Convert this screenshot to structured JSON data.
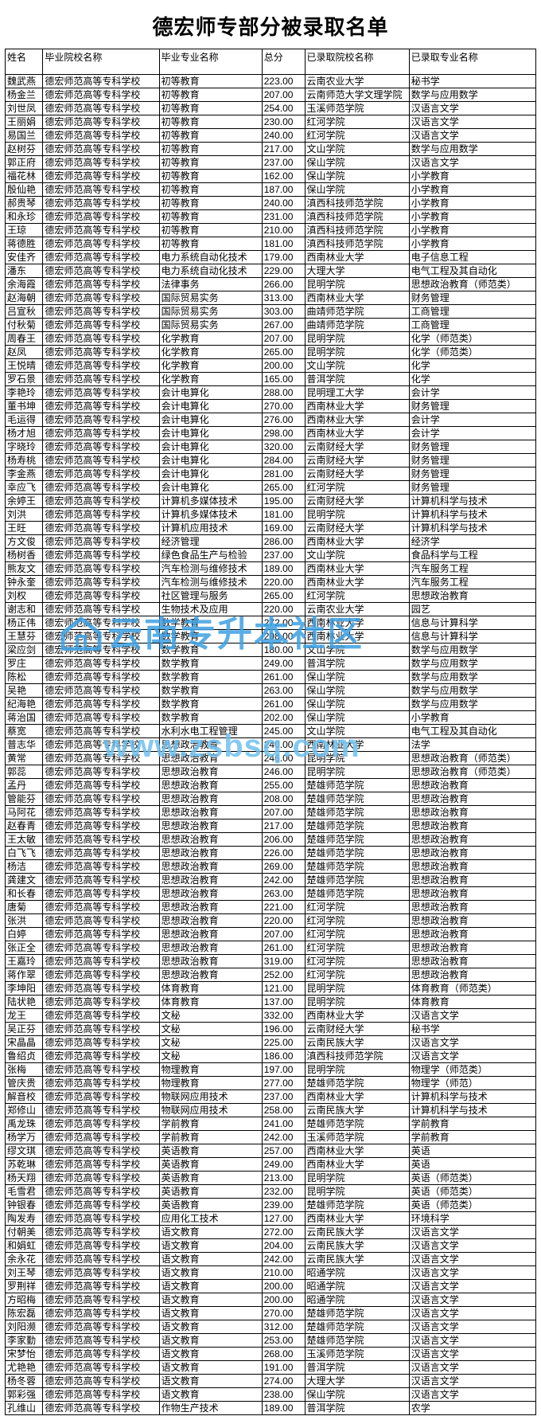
{
  "title": "德宏师专部分被录取名单",
  "columns": [
    "姓名",
    "毕业院校名称",
    "毕业专业名称",
    "总分",
    "已录取院校名称",
    "已录取专业名称"
  ],
  "watermark1": "云南专升本社区",
  "watermark2": "www.zsbsq.com",
  "rows": [
    [
      "魏武燕",
      "德宏师范高等专科学校",
      "初等教育",
      "223.00",
      "云南农业大学",
      "秘书学"
    ],
    [
      "杨金兰",
      "德宏师范高等专科学校",
      "初等教育",
      "207.00",
      "云南师范大学文理学院",
      "数学与应用数学"
    ],
    [
      "刘世凤",
      "德宏师范高等专科学校",
      "初等教育",
      "254.00",
      "玉溪师范学院",
      "汉语言文学"
    ],
    [
      "王丽娟",
      "德宏师范高等专科学校",
      "初等教育",
      "230.00",
      "红河学院",
      "汉语言文学"
    ],
    [
      "易国兰",
      "德宏师范高等专科学校",
      "初等教育",
      "240.00",
      "红河学院",
      "汉语言文学"
    ],
    [
      "赵树芬",
      "德宏师范高等专科学校",
      "初等教育",
      "217.00",
      "文山学院",
      "数学与应用数学"
    ],
    [
      "郭正府",
      "德宏师范高等专科学校",
      "初等教育",
      "237.00",
      "保山学院",
      "汉语言文学"
    ],
    [
      "福花林",
      "德宏师范高等专科学校",
      "初等教育",
      "162.00",
      "保山学院",
      "小学教育"
    ],
    [
      "殷仙艳",
      "德宏师范高等专科学校",
      "初等教育",
      "187.00",
      "保山学院",
      "小学教育"
    ],
    [
      "郝贵琴",
      "德宏师范高等专科学校",
      "初等教育",
      "240.00",
      "滇西科技师范学院",
      "小学教育"
    ],
    [
      "和永珍",
      "德宏师范高等专科学校",
      "初等教育",
      "231.00",
      "滇西科技师范学院",
      "小学教育"
    ],
    [
      "王琼",
      "德宏师范高等专科学校",
      "初等教育",
      "210.00",
      "滇西科技师范学院",
      "小学教育"
    ],
    [
      "蒋德胜",
      "德宏师范高等专科学校",
      "初等教育",
      "181.00",
      "滇西科技师范学院",
      "小学教育"
    ],
    [
      "安佳齐",
      "德宏师范高等专科学校",
      "电力系统自动化技术",
      "179.00",
      "西南林业大学",
      "电子信息工程"
    ],
    [
      "潘东",
      "德宏师范高等专科学校",
      "电力系统自动化技术",
      "229.00",
      "大理大学",
      "电气工程及其自动化"
    ],
    [
      "余海霞",
      "德宏师范高等专科学校",
      "法律事务",
      "266.00",
      "昆明学院",
      "思想政治教育（师范类）"
    ],
    [
      "赵海朝",
      "德宏师范高等专科学校",
      "国际贸易实务",
      "313.00",
      "西南林业大学",
      "财务管理"
    ],
    [
      "吕宣秋",
      "德宏师范高等专科学校",
      "国际贸易实务",
      "303.00",
      "曲靖师范学院",
      "工商管理"
    ],
    [
      "付秋菊",
      "德宏师范高等专科学校",
      "国际贸易实务",
      "267.00",
      "曲靖师范学院",
      "工商管理"
    ],
    [
      "周春王",
      "德宏师范高等专科学校",
      "化学教育",
      "207.00",
      "昆明学院",
      "化学（师范类）"
    ],
    [
      "赵凤",
      "德宏师范高等专科学校",
      "化学教育",
      "265.00",
      "昆明学院",
      "化学（师范类）"
    ],
    [
      "王悦晴",
      "德宏师范高等专科学校",
      "化学教育",
      "200.00",
      "文山学院",
      "化学"
    ],
    [
      "罗石景",
      "德宏师范高等专科学校",
      "化学教育",
      "165.00",
      "普洱学院",
      "化学"
    ],
    [
      "李艳玲",
      "德宏师范高等专科学校",
      "会计电算化",
      "288.00",
      "昆明理工大学",
      "会计学"
    ],
    [
      "董书坤",
      "德宏师范高等专科学校",
      "会计电算化",
      "270.00",
      "西南林业大学",
      "财务管理"
    ],
    [
      "毛运得",
      "德宏师范高等专科学校",
      "会计电算化",
      "276.00",
      "西南林业大学",
      "会计学"
    ],
    [
      "杨才旭",
      "德宏师范高等专科学校",
      "会计电算化",
      "298.00",
      "西南林业大学",
      "会计学"
    ],
    [
      "字晓玲",
      "德宏师范高等专科学校",
      "会计电算化",
      "320.00",
      "云南财经大学",
      "财务管理"
    ],
    [
      "杨寿桃",
      "德宏师范高等专科学校",
      "会计电算化",
      "284.00",
      "云南财经大学",
      "财务管理"
    ],
    [
      "李金燕",
      "德宏师范高等专科学校",
      "会计电算化",
      "281.00",
      "云南财经大学",
      "财务管理"
    ],
    [
      "幸应飞",
      "德宏师范高等专科学校",
      "会计电算化",
      "265.00",
      "红河学院",
      "财务管理"
    ],
    [
      "余婷王",
      "德宏师范高等专科学校",
      "计算机多媒体技术",
      "195.00",
      "云南财经大学",
      "计算机科学与技术"
    ],
    [
      "刘洪",
      "德宏师范高等专科学校",
      "计算机多媒体技术",
      "181.00",
      "昆明学院",
      "计算机科学与技术"
    ],
    [
      "王旺",
      "德宏师范高等专科学校",
      "计算机应用技术",
      "169.00",
      "云南财经大学",
      "计算机科学与技术"
    ],
    [
      "方文俊",
      "德宏师范高等专科学校",
      "经济管理",
      "286.00",
      "西南林业大学",
      "经济学"
    ],
    [
      "杨树香",
      "德宏师范高等专科学校",
      "绿色食品生产与检验",
      "237.00",
      "文山学院",
      "食品科学与工程"
    ],
    [
      "熊友文",
      "德宏师范高等专科学校",
      "汽车检测与维修技术",
      "189.00",
      "西南林业大学",
      "汽车服务工程"
    ],
    [
      "钟永奎",
      "德宏师范高等专科学校",
      "汽车检测与维修技术",
      "220.00",
      "西南林业大学",
      "汽车服务工程"
    ],
    [
      "刘权",
      "德宏师范高等专科学校",
      "社区管理与服务",
      "265.00",
      "红河学院",
      "思想政治教育"
    ],
    [
      "谢志和",
      "德宏师范高等专科学校",
      "生物技术及应用",
      "220.00",
      "云南农业大学",
      "园艺"
    ],
    [
      "杨正伟",
      "德宏师范高等专科学校",
      "数学教育",
      "272.00",
      "西南林业大学",
      "信息与计算科学"
    ],
    [
      "王慧芬",
      "德宏师范高等专科学校",
      "数学教育",
      "208.00",
      "西南林业大学",
      "信息与计算科学"
    ],
    [
      "梁应剑",
      "德宏师范高等专科学校",
      "数学教育",
      "180.00",
      "文山学院",
      "数学与应用数学"
    ],
    [
      "罗庄",
      "德宏师范高等专科学校",
      "数学教育",
      "249.00",
      "普洱学院",
      "数学与应用数学"
    ],
    [
      "陈松",
      "德宏师范高等专科学校",
      "数学教育",
      "261.00",
      "保山学院",
      "数学与应用数学"
    ],
    [
      "吴艳",
      "德宏师范高等专科学校",
      "数学教育",
      "263.00",
      "保山学院",
      "数学与应用数学"
    ],
    [
      "纪海艳",
      "德宏师范高等专科学校",
      "数学教育",
      "261.00",
      "保山学院",
      "数学与应用数学"
    ],
    [
      "蒋治国",
      "德宏师范高等专科学校",
      "数学教育",
      "202.00",
      "保山学院",
      "小学教育"
    ],
    [
      "蔡宽",
      "德宏师范高等专科学校",
      "水利水电工程管理",
      "245.00",
      "文山学院",
      "电气工程及其自动化"
    ],
    [
      "普志华",
      "德宏师范高等专科学校",
      "思想政治教育",
      "240.00",
      "西南林业大学",
      "法学"
    ],
    [
      "黄常",
      "德宏师范高等专科学校",
      "思想政治教育",
      "246.00",
      "昆明学院",
      "思想政治教育（师范类）"
    ],
    [
      "郭蕊",
      "德宏师范高等专科学校",
      "思想政治教育",
      "246.00",
      "昆明学院",
      "思想政治教育（师范类）"
    ],
    [
      "孟丹",
      "德宏师范高等专科学校",
      "思想政治教育",
      "255.00",
      "楚雄师范学院",
      "思想政治教育"
    ],
    [
      "管能芬",
      "德宏师范高等专科学校",
      "思想政治教育",
      "208.00",
      "楚雄师范学院",
      "思想政治教育"
    ],
    [
      "马阿花",
      "德宏师范高等专科学校",
      "思想政治教育",
      "207.00",
      "楚雄师范学院",
      "思想政治教育"
    ],
    [
      "赵春青",
      "德宏师范高等专科学校",
      "思想政治教育",
      "217.00",
      "楚雄师范学院",
      "思想政治教育"
    ],
    [
      "王太敏",
      "德宏师范高等专科学校",
      "思想政治教育",
      "206.00",
      "楚雄师范学院",
      "思想政治教育"
    ],
    [
      "白飞飞",
      "德宏师范高等专科学校",
      "思想政治教育",
      "226.00",
      "楚雄师范学院",
      "思想政治教育"
    ],
    [
      "杨洁",
      "德宏师范高等专科学校",
      "思想政治教育",
      "269.00",
      "楚雄师范学院",
      "思想政治教育"
    ],
    [
      "龚建文",
      "德宏师范高等专科学校",
      "思想政治教育",
      "242.00",
      "楚雄师范学院",
      "思想政治教育"
    ],
    [
      "和长春",
      "德宏师范高等专科学校",
      "思想政治教育",
      "263.00",
      "楚雄师范学院",
      "思想政治教育"
    ],
    [
      "唐菊",
      "德宏师范高等专科学校",
      "思想政治教育",
      "221.00",
      "红河学院",
      "思想政治教育"
    ],
    [
      "张洪",
      "德宏师范高等专科学校",
      "思想政治教育",
      "220.00",
      "红河学院",
      "思想政治教育"
    ],
    [
      "白婷",
      "德宏师范高等专科学校",
      "思想政治教育",
      "207.00",
      "红河学院",
      "思想政治教育"
    ],
    [
      "张正全",
      "德宏师范高等专科学校",
      "思想政治教育",
      "261.00",
      "红河学院",
      "思想政治教育"
    ],
    [
      "王嘉玲",
      "德宏师范高等专科学校",
      "思想政治教育",
      "319.00",
      "红河学院",
      "思想政治教育"
    ],
    [
      "蒋作翠",
      "德宏师范高等专科学校",
      "思想政治教育",
      "252.00",
      "红河学院",
      "思想政治教育"
    ],
    [
      "李坤阳",
      "德宏师范高等专科学校",
      "体育教育",
      "121.00",
      "昆明学院",
      "体育教育（师范类）"
    ],
    [
      "陆状艳",
      "德宏师范高等专科学校",
      "体育教育",
      "137.00",
      "昆明学院",
      "体育教育"
    ],
    [
      "龙王",
      "德宏师范高等专科学校",
      "文秘",
      "332.00",
      "西南林业大学",
      "汉语言文学"
    ],
    [
      "吴正芬",
      "德宏师范高等专科学校",
      "文秘",
      "196.00",
      "云南财经大学",
      "秘书学"
    ],
    [
      "宋晶晶",
      "德宏师范高等专科学校",
      "文秘",
      "225.00",
      "云南民族大学",
      "汉语言文学"
    ],
    [
      "鲁绍贞",
      "德宏师范高等专科学校",
      "文秘",
      "186.00",
      "滇西科技师范学院",
      "汉语言文学"
    ],
    [
      "张梅",
      "德宏师范高等专科学校",
      "物理教育",
      "197.00",
      "昆明学院",
      "物理学（师范类）"
    ],
    [
      "管庆贵",
      "德宏师范高等专科学校",
      "物理教育",
      "277.00",
      "楚雄师范学院",
      "物理学（师范）"
    ],
    [
      "解音校",
      "德宏师范高等专科学校",
      "物联网应用技术",
      "237.00",
      "西南林业大学",
      "计算机科学与技术"
    ],
    [
      "郑修山",
      "德宏师范高等专科学校",
      "物联网应用技术",
      "258.00",
      "云南民族大学",
      "计算机科学与技术"
    ],
    [
      "禹龙珠",
      "德宏师范高等专科学校",
      "学前教育",
      "241.00",
      "楚雄师范学院",
      "学前教育"
    ],
    [
      "杨学万",
      "德宏师范高等专科学校",
      "学前教育",
      "242.00",
      "玉溪师范学院",
      "学前教育"
    ],
    [
      "缪文琪",
      "德宏师范高等专科学校",
      "英语教育",
      "257.00",
      "西南林业大学",
      "英语"
    ],
    [
      "苏乾琳",
      "德宏师范高等专科学校",
      "英语教育",
      "249.00",
      "西南林业大学",
      "英语"
    ],
    [
      "杨天翔",
      "德宏师范高等专科学校",
      "英语教育",
      "213.00",
      "昆明学院",
      "英语（师范类）"
    ],
    [
      "毛雪君",
      "德宏师范高等专科学校",
      "英语教育",
      "232.00",
      "昆明学院",
      "英语（师范类）"
    ],
    [
      "钟银春",
      "德宏师范高等专科学校",
      "英语教育",
      "239.00",
      "楚雄师范学院",
      "英语（师范类）"
    ],
    [
      "陶发寿",
      "德宏师范高等专科学校",
      "应用化工技术",
      "127.00",
      "西南林业大学",
      "环境科学"
    ],
    [
      "付朝美",
      "德宏师范高等专科学校",
      "语文教育",
      "272.00",
      "云南民族大学",
      "汉语言文学"
    ],
    [
      "和娟虹",
      "德宏师范高等专科学校",
      "语文教育",
      "204.00",
      "云南民族大学",
      "汉语言文学"
    ],
    [
      "余永花",
      "德宏师范高等专科学校",
      "语文教育",
      "242.00",
      "云南民族大学",
      "汉语言文学"
    ],
    [
      "刘王琴",
      "德宏师范高等专科学校",
      "语文教育",
      "210.00",
      "昭通学院",
      "汉语言文学"
    ],
    [
      "罗荆祥",
      "德宏师范高等专科学校",
      "语文教育",
      "200.00",
      "昭通学院",
      "汉语言文学"
    ],
    [
      "方昭梅",
      "德宏师范高等专科学校",
      "语文教育",
      "200.00",
      "昭通学院",
      "汉语言文学"
    ],
    [
      "陈宏磊",
      "德宏师范高等专科学校",
      "语文教育",
      "270.00",
      "楚雄师范学院",
      "汉语言文学"
    ],
    [
      "刘阳濒",
      "德宏师范高等专科学校",
      "语文教育",
      "312.00",
      "楚雄师范学院",
      "汉语言文学"
    ],
    [
      "李家勤",
      "德宏师范高等专科学校",
      "语文教育",
      "253.00",
      "楚雄师范学院",
      "汉语言文学"
    ],
    [
      "宋梦怡",
      "德宏师范高等专科学校",
      "语文教育",
      "268.00",
      "玉溪师范学院",
      "汉语言文学"
    ],
    [
      "尤艳艳",
      "德宏师范高等专科学校",
      "语文教育",
      "191.00",
      "普洱学院",
      "汉语言文学"
    ],
    [
      "杨冬蓉",
      "德宏师范高等专科学校",
      "语文教育",
      "274.00",
      "大理大学",
      "汉语言文学"
    ],
    [
      "郭彩强",
      "德宏师范高等专科学校",
      "语文教育",
      "238.00",
      "保山学院",
      "汉语言文学"
    ],
    [
      "孔维山",
      "德宏师范高等专科学校",
      "作物生产技术",
      "189.00",
      "普洱学院",
      "农学"
    ]
  ]
}
